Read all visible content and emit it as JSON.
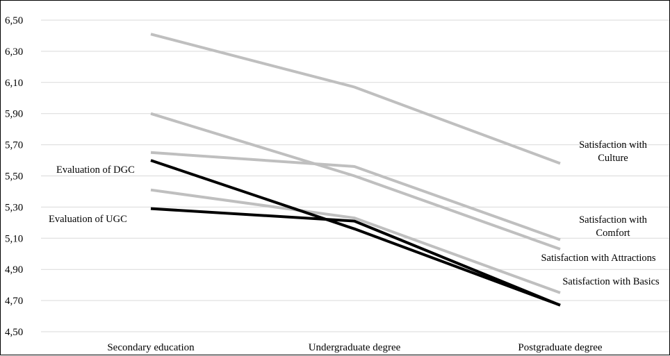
{
  "chart_data": {
    "type": "line",
    "title": "",
    "xlabel": "",
    "ylabel": "",
    "categories": [
      "Secondary education",
      "Undergraduate degree",
      "Postgraduate degree"
    ],
    "ylim": [
      4.5,
      6.5
    ],
    "yticks": [
      "6,50",
      "6,30",
      "6,10",
      "5,90",
      "5,70",
      "5,50",
      "5,30",
      "5,10",
      "4,90",
      "4,70",
      "4,50"
    ],
    "grid": true,
    "legend": "none",
    "series": [
      {
        "label_lines": [
          "Satisfaction with",
          "Culture"
        ],
        "values": [
          6.41,
          6.07,
          5.58
        ],
        "color": "#bfbfbf"
      },
      {
        "label_lines": [
          "Satisfaction with",
          "Comfort"
        ],
        "values": [
          5.65,
          5.56,
          5.09
        ],
        "color": "#bfbfbf"
      },
      {
        "label_lines": [
          "Satisfaction with Attractions"
        ],
        "values": [
          5.9,
          5.5,
          5.03
        ],
        "color": "#bfbfbf"
      },
      {
        "label_lines": [
          "Satisfaction with Basics"
        ],
        "values": [
          5.41,
          5.23,
          4.75
        ],
        "color": "#bfbfbf"
      },
      {
        "label_lines": [
          "Evaluation  of DGC"
        ],
        "values": [
          5.6,
          5.16,
          4.67
        ],
        "color": "#000000"
      },
      {
        "label_lines": [
          "Evaluation  of UGC"
        ],
        "values": [
          5.29,
          5.21,
          4.67
        ],
        "color": "#000000"
      }
    ]
  }
}
